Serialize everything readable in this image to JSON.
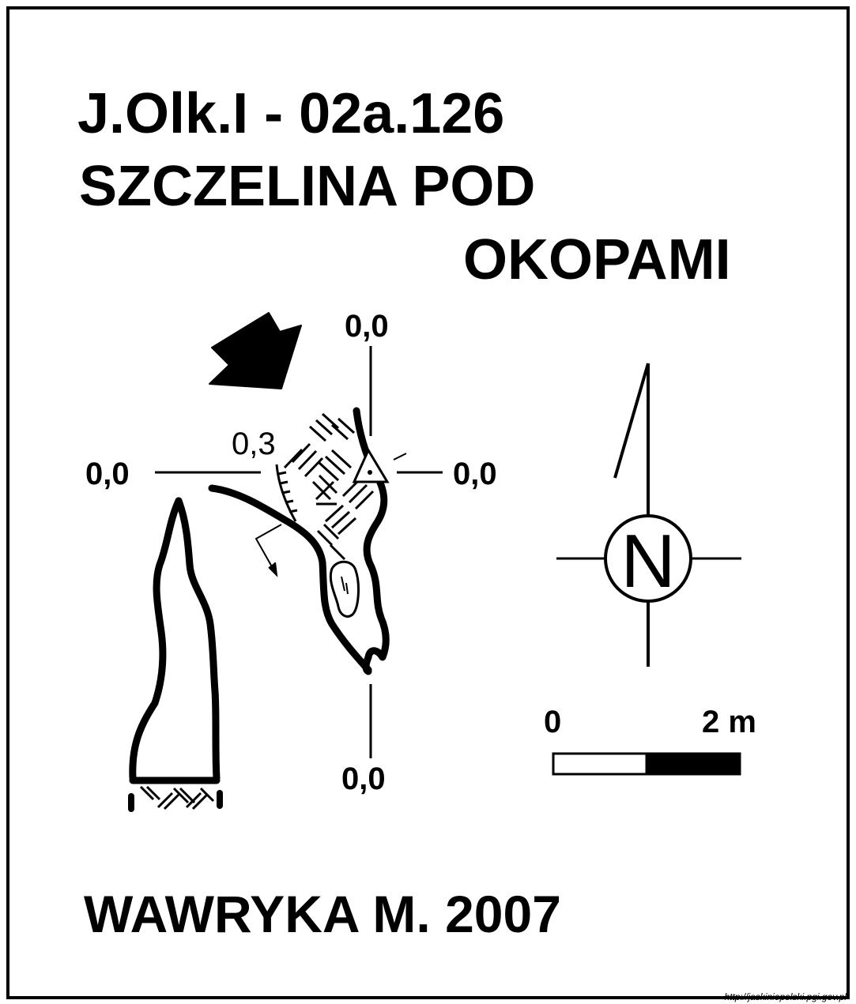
{
  "title": {
    "line1": "J.Olk.I - 02a.126",
    "line2": "SZCZELINA POD",
    "line3": "OKOPAMI"
  },
  "elevation_labels": {
    "top": "0,0",
    "left": "0,0",
    "right": "0,0",
    "bottom": "0,0",
    "inner": "0,3"
  },
  "compass": {
    "label": "N"
  },
  "scale": {
    "start": "0",
    "end": "2 m"
  },
  "author": "WAWRYKA M. 2007",
  "source_url": "http://jaskiniepolski.pgi.gov.pl",
  "colors": {
    "ink": "#000000",
    "paper": "#ffffff"
  }
}
